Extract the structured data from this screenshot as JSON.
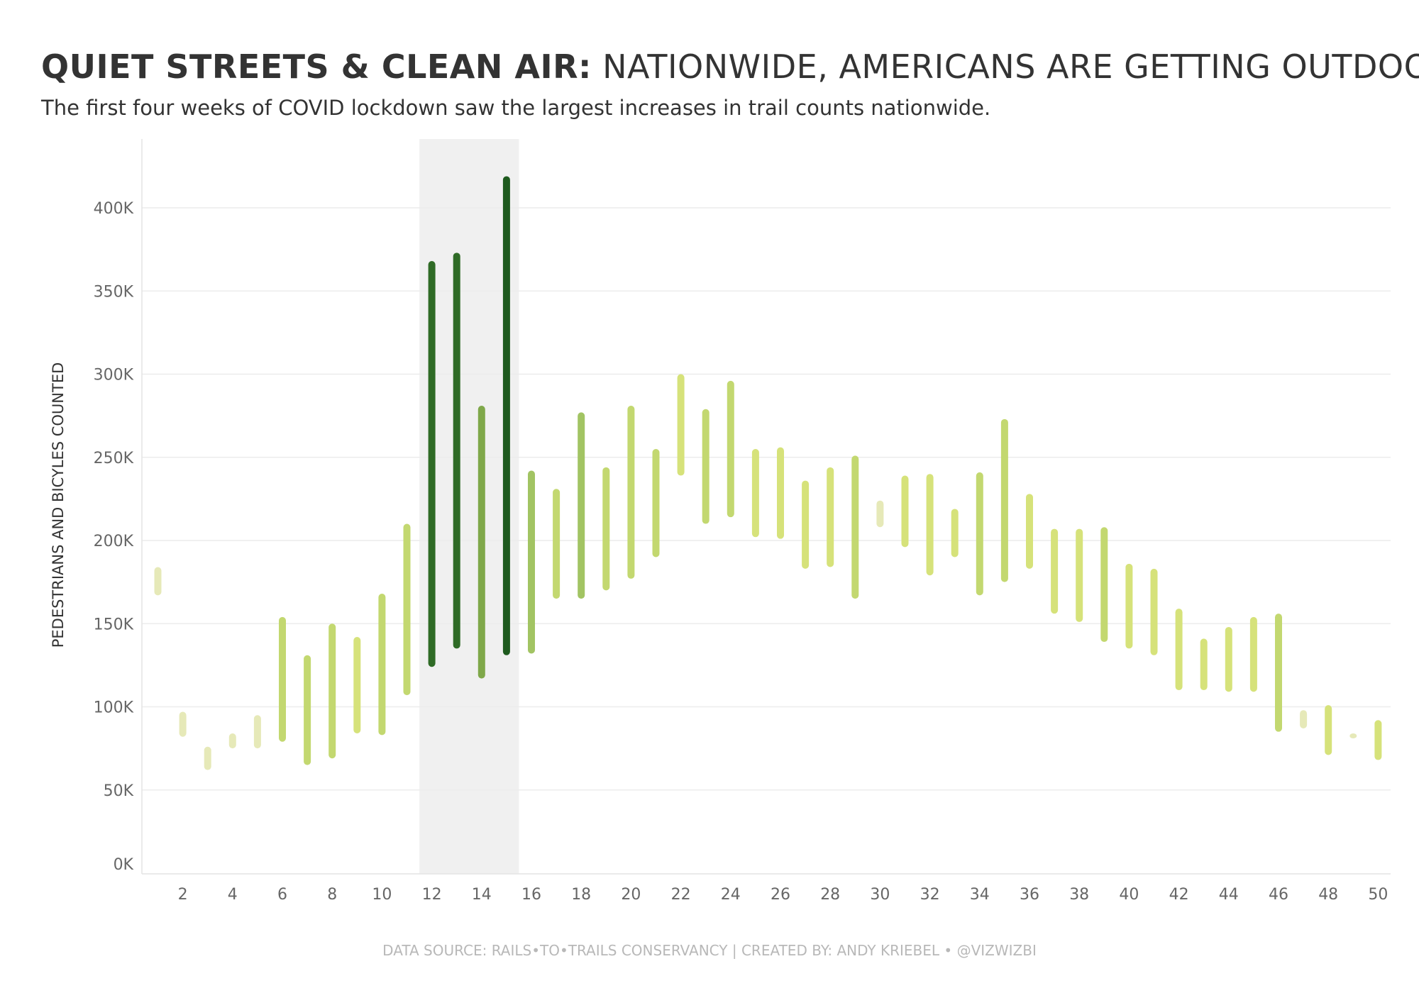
{
  "header": {
    "title_bold": "QUIET STREETS & CLEAN AIR:",
    "title_rest": "NATIONWIDE, AMERICANS ARE GETTING OUTDOORS",
    "subtitle": "The first four weeks of COVID lockdown saw the largest increases in trail counts nationwide."
  },
  "footer": {
    "source": "DATA SOURCE: RAILS•TO•TRAILS CONSERVANCY  |  CREATED BY: ANDY KRIEBEL • @VIZWIZBI"
  },
  "colors": {
    "highlight_band": "#f0f0f0",
    "gridline": "#ececec",
    "palette": [
      "#e6e9b8",
      "#d6e27a",
      "#c3d870",
      "#a2c463",
      "#7fa84a",
      "#5e8f3a",
      "#2f6b26",
      "#1e5a1e"
    ]
  },
  "chart_data": {
    "type": "range-bar",
    "title": "QUIET STREETS & CLEAN AIR: NATIONWIDE, AMERICANS ARE GETTING OUTDOORS",
    "subtitle": "The first four weeks of COVID lockdown saw the largest increases in trail counts nationwide.",
    "xlabel": "",
    "ylabel": "PEDESTRIANS AND BICYLES COUNTED",
    "ylim": [
      0,
      440000
    ],
    "xlim": [
      0.5,
      50.5
    ],
    "y_ticks": [
      0,
      50000,
      100000,
      150000,
      200000,
      250000,
      300000,
      350000,
      400000
    ],
    "y_tick_labels": [
      "0K",
      "50K",
      "100K",
      "150K",
      "200K",
      "250K",
      "300K",
      "350K",
      "400K"
    ],
    "x_ticks": [
      2,
      4,
      6,
      8,
      10,
      12,
      14,
      16,
      18,
      20,
      22,
      24,
      26,
      28,
      30,
      32,
      34,
      36,
      38,
      40,
      42,
      44,
      46,
      48,
      50
    ],
    "x_tick_labels": [
      "2",
      "4",
      "6",
      "8",
      "10",
      "12",
      "14",
      "16",
      "18",
      "20",
      "22",
      "24",
      "26",
      "28",
      "30",
      "32",
      "34",
      "36",
      "38",
      "40",
      "42",
      "44",
      "46",
      "48",
      "50"
    ],
    "highlight_weeks": [
      12,
      15
    ],
    "grid": true,
    "series": [
      {
        "week": 1,
        "low": 167000,
        "high": 184000
      },
      {
        "week": 2,
        "low": 82000,
        "high": 97000
      },
      {
        "week": 3,
        "low": 62000,
        "high": 76000
      },
      {
        "week": 4,
        "low": 75000,
        "high": 84000
      },
      {
        "week": 5,
        "low": 75000,
        "high": 95000
      },
      {
        "week": 6,
        "low": 79000,
        "high": 154000
      },
      {
        "week": 7,
        "low": 65000,
        "high": 131000
      },
      {
        "week": 8,
        "low": 69000,
        "high": 150000
      },
      {
        "week": 9,
        "low": 84000,
        "high": 142000
      },
      {
        "week": 10,
        "low": 83000,
        "high": 168000
      },
      {
        "week": 11,
        "low": 107000,
        "high": 210000
      },
      {
        "week": 12,
        "low": 124000,
        "high": 368000
      },
      {
        "week": 13,
        "low": 135000,
        "high": 373000
      },
      {
        "week": 14,
        "low": 117000,
        "high": 281000
      },
      {
        "week": 15,
        "low": 131000,
        "high": 419000
      },
      {
        "week": 16,
        "low": 132000,
        "high": 242000
      },
      {
        "week": 17,
        "low": 165000,
        "high": 231000
      },
      {
        "week": 18,
        "low": 165000,
        "high": 277000
      },
      {
        "week": 19,
        "low": 170000,
        "high": 244000
      },
      {
        "week": 20,
        "low": 177000,
        "high": 281000
      },
      {
        "week": 21,
        "low": 190000,
        "high": 255000
      },
      {
        "week": 22,
        "low": 239000,
        "high": 300000
      },
      {
        "week": 23,
        "low": 210000,
        "high": 279000
      },
      {
        "week": 24,
        "low": 214000,
        "high": 296000
      },
      {
        "week": 25,
        "low": 202000,
        "high": 255000
      },
      {
        "week": 26,
        "low": 201000,
        "high": 256000
      },
      {
        "week": 27,
        "low": 183000,
        "high": 236000
      },
      {
        "week": 28,
        "low": 184000,
        "high": 244000
      },
      {
        "week": 29,
        "low": 165000,
        "high": 251000
      },
      {
        "week": 30,
        "low": 208000,
        "high": 224000
      },
      {
        "week": 31,
        "low": 196000,
        "high": 239000
      },
      {
        "week": 32,
        "low": 179000,
        "high": 240000
      },
      {
        "week": 33,
        "low": 190000,
        "high": 219000
      },
      {
        "week": 34,
        "low": 167000,
        "high": 241000
      },
      {
        "week": 35,
        "low": 175000,
        "high": 273000
      },
      {
        "week": 36,
        "low": 183000,
        "high": 228000
      },
      {
        "week": 37,
        "low": 156000,
        "high": 207000
      },
      {
        "week": 38,
        "low": 151000,
        "high": 207000
      },
      {
        "week": 39,
        "low": 139000,
        "high": 208000
      },
      {
        "week": 40,
        "low": 135000,
        "high": 186000
      },
      {
        "week": 41,
        "low": 131000,
        "high": 183000
      },
      {
        "week": 42,
        "low": 110000,
        "high": 159000
      },
      {
        "week": 43,
        "low": 110000,
        "high": 141000
      },
      {
        "week": 44,
        "low": 109000,
        "high": 148000
      },
      {
        "week": 45,
        "low": 109000,
        "high": 154000
      },
      {
        "week": 46,
        "low": 85000,
        "high": 156000
      },
      {
        "week": 47,
        "low": 87000,
        "high": 98000
      },
      {
        "week": 48,
        "low": 71000,
        "high": 101000
      },
      {
        "week": 49,
        "low": 81000,
        "high": 84000
      },
      {
        "week": 50,
        "low": 68000,
        "high": 92000
      }
    ]
  }
}
